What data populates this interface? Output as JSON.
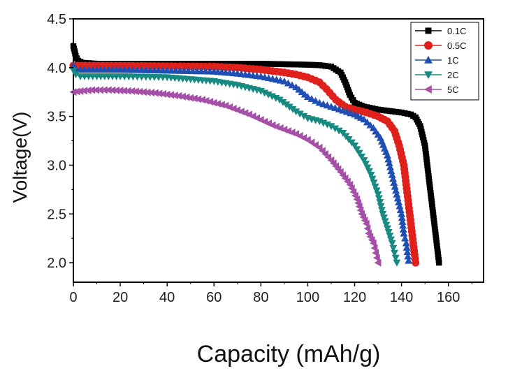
{
  "chart_data": {
    "type": "line",
    "xlabel": "Capacity (mAh/g)",
    "ylabel": "Voltage(V)",
    "xlim": [
      0,
      175
    ],
    "ylim": [
      1.8,
      4.5
    ],
    "xticks": [
      "0",
      "20",
      "40",
      "60",
      "80",
      "100",
      "120",
      "140",
      "160"
    ],
    "yticks": [
      "2.0",
      "2.5",
      "3.0",
      "3.5",
      "4.0",
      "4.5"
    ],
    "grid": false,
    "legend_position": "top-right",
    "series": [
      {
        "name": "0.1C",
        "color": "#000000",
        "marker": "square",
        "points": [
          [
            0,
            4.22
          ],
          [
            1,
            4.12
          ],
          [
            2,
            4.07
          ],
          [
            4,
            4.05
          ],
          [
            10,
            4.04
          ],
          [
            20,
            4.04
          ],
          [
            40,
            4.04
          ],
          [
            60,
            4.04
          ],
          [
            80,
            4.04
          ],
          [
            90,
            4.035
          ],
          [
            100,
            4.03
          ],
          [
            105,
            4.025
          ],
          [
            110,
            4.01
          ],
          [
            114,
            3.95
          ],
          [
            116,
            3.85
          ],
          [
            118,
            3.72
          ],
          [
            120,
            3.64
          ],
          [
            124,
            3.6
          ],
          [
            130,
            3.57
          ],
          [
            140,
            3.54
          ],
          [
            144,
            3.52
          ],
          [
            146,
            3.49
          ],
          [
            148,
            3.4
          ],
          [
            150,
            3.2
          ],
          [
            151,
            3.0
          ],
          [
            152,
            2.8
          ],
          [
            153,
            2.6
          ],
          [
            154,
            2.4
          ],
          [
            155,
            2.2
          ],
          [
            156,
            2.0
          ]
        ]
      },
      {
        "name": "0.5C",
        "color": "#e0201b",
        "marker": "circle",
        "points": [
          [
            0,
            4.02
          ],
          [
            2,
            4.02
          ],
          [
            5,
            4.02
          ],
          [
            20,
            4.02
          ],
          [
            40,
            4.015
          ],
          [
            60,
            4.01
          ],
          [
            70,
            4.0
          ],
          [
            80,
            3.98
          ],
          [
            90,
            3.95
          ],
          [
            95,
            3.93
          ],
          [
            100,
            3.9
          ],
          [
            105,
            3.85
          ],
          [
            108,
            3.78
          ],
          [
            112,
            3.67
          ],
          [
            116,
            3.6
          ],
          [
            120,
            3.57
          ],
          [
            125,
            3.54
          ],
          [
            130,
            3.5
          ],
          [
            134,
            3.45
          ],
          [
            137,
            3.35
          ],
          [
            139,
            3.2
          ],
          [
            141,
            3.0
          ],
          [
            142,
            2.8
          ],
          [
            143,
            2.6
          ],
          [
            144,
            2.4
          ],
          [
            145,
            2.2
          ],
          [
            146,
            2.0
          ]
        ]
      },
      {
        "name": "1C",
        "color": "#1f4fb5",
        "marker": "triangle-up",
        "points": [
          [
            0,
            4.02
          ],
          [
            1,
            3.99
          ],
          [
            3,
            3.98
          ],
          [
            10,
            3.98
          ],
          [
            20,
            3.98
          ],
          [
            40,
            3.97
          ],
          [
            60,
            3.96
          ],
          [
            70,
            3.94
          ],
          [
            80,
            3.91
          ],
          [
            90,
            3.86
          ],
          [
            95,
            3.8
          ],
          [
            100,
            3.7
          ],
          [
            105,
            3.64
          ],
          [
            110,
            3.6
          ],
          [
            115,
            3.56
          ],
          [
            120,
            3.52
          ],
          [
            124,
            3.47
          ],
          [
            128,
            3.38
          ],
          [
            131,
            3.28
          ],
          [
            134,
            3.1
          ],
          [
            136,
            2.9
          ],
          [
            138,
            2.7
          ],
          [
            140,
            2.5
          ],
          [
            141,
            2.3
          ],
          [
            142,
            2.2
          ],
          [
            143,
            2.02
          ]
        ]
      },
      {
        "name": "2C",
        "color": "#168a80",
        "marker": "triangle-down",
        "points": [
          [
            0,
            3.97
          ],
          [
            1,
            3.93
          ],
          [
            3,
            3.91
          ],
          [
            10,
            3.91
          ],
          [
            20,
            3.91
          ],
          [
            40,
            3.9
          ],
          [
            50,
            3.88
          ],
          [
            60,
            3.86
          ],
          [
            70,
            3.82
          ],
          [
            80,
            3.76
          ],
          [
            88,
            3.67
          ],
          [
            95,
            3.55
          ],
          [
            100,
            3.48
          ],
          [
            105,
            3.45
          ],
          [
            110,
            3.4
          ],
          [
            115,
            3.33
          ],
          [
            120,
            3.2
          ],
          [
            124,
            3.05
          ],
          [
            127,
            2.9
          ],
          [
            130,
            2.7
          ],
          [
            132,
            2.5
          ],
          [
            134,
            2.35
          ],
          [
            136,
            2.2
          ],
          [
            137,
            2.1
          ],
          [
            138,
            2.0
          ]
        ]
      },
      {
        "name": "5C",
        "color": "#a64fa8",
        "marker": "triangle-left",
        "points": [
          [
            0,
            3.75
          ],
          [
            3,
            3.76
          ],
          [
            8,
            3.77
          ],
          [
            15,
            3.77
          ],
          [
            25,
            3.76
          ],
          [
            35,
            3.74
          ],
          [
            45,
            3.71
          ],
          [
            55,
            3.67
          ],
          [
            65,
            3.61
          ],
          [
            75,
            3.52
          ],
          [
            85,
            3.41
          ],
          [
            95,
            3.32
          ],
          [
            100,
            3.26
          ],
          [
            105,
            3.18
          ],
          [
            110,
            3.05
          ],
          [
            114,
            2.93
          ],
          [
            118,
            2.8
          ],
          [
            121,
            2.65
          ],
          [
            123,
            2.5
          ],
          [
            125,
            2.4
          ],
          [
            126,
            2.3
          ],
          [
            128,
            2.2
          ],
          [
            129,
            2.1
          ],
          [
            130,
            2.0
          ]
        ]
      }
    ]
  }
}
